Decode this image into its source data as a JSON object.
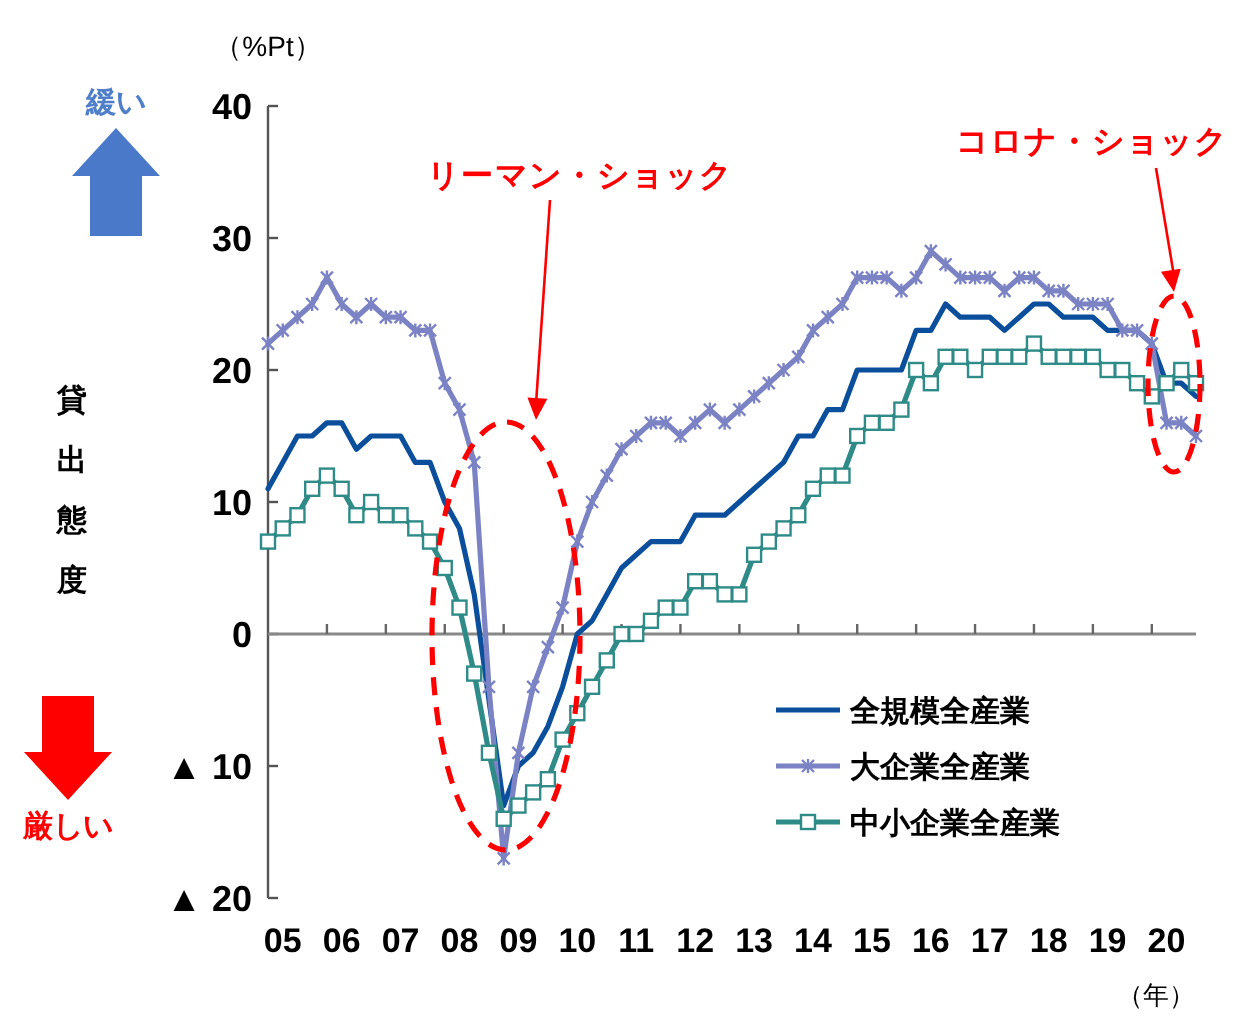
{
  "chart_data": {
    "type": "line",
    "ylabel": "貸出態度",
    "xlabel": "（年）",
    "categories": [
      null,
      "05",
      null,
      null,
      null,
      "06",
      null,
      null,
      null,
      "07",
      null,
      null,
      null,
      "08",
      null,
      null,
      null,
      "09",
      null,
      null,
      null,
      "10",
      null,
      null,
      null,
      "11",
      null,
      null,
      null,
      "12",
      null,
      null,
      null,
      "13",
      null,
      null,
      null,
      "14",
      null,
      null,
      null,
      "15",
      null,
      null,
      null,
      "16",
      null,
      null,
      null,
      "17",
      null,
      null,
      null,
      "18",
      null,
      null,
      null,
      "19",
      null,
      null,
      null,
      "20",
      null,
      null
    ],
    "series": [
      {
        "name": "全規模全産業",
        "color": "#0b4f9c",
        "marker": "none",
        "values": [
          11,
          13,
          15,
          15,
          16,
          16,
          14,
          15,
          15,
          15,
          13,
          13,
          10,
          8,
          3,
          -5,
          -13,
          -10,
          -9,
          -7,
          -4,
          0,
          1,
          3,
          5,
          6,
          7,
          7,
          7,
          9,
          9,
          9,
          10,
          11,
          12,
          13,
          15,
          15,
          17,
          17,
          20,
          20,
          20,
          20,
          23,
          23,
          25,
          24,
          24,
          24,
          23,
          24,
          25,
          25,
          24,
          24,
          24,
          23,
          23,
          23,
          22,
          19,
          19,
          18
        ]
      },
      {
        "name": "大企業全産業",
        "color": "#7b83c4",
        "marker": "cross",
        "values": [
          22,
          23,
          24,
          25,
          27,
          25,
          24,
          25,
          24,
          24,
          23,
          23,
          19,
          17,
          13,
          -4,
          -17,
          -9,
          -4,
          -1,
          2,
          7,
          10,
          12,
          14,
          15,
          16,
          16,
          15,
          16,
          17,
          16,
          17,
          18,
          19,
          20,
          21,
          23,
          24,
          25,
          27,
          27,
          27,
          26,
          27,
          29,
          28,
          27,
          27,
          27,
          26,
          27,
          27,
          26,
          26,
          25,
          25,
          25,
          23,
          23,
          22,
          16,
          16,
          15
        ]
      },
      {
        "name": "中小企業全産業",
        "color": "#2e8b87",
        "marker": "square",
        "values": [
          7,
          8,
          9,
          11,
          12,
          11,
          9,
          10,
          9,
          9,
          8,
          7,
          5,
          2,
          -3,
          -9,
          -14,
          -13,
          -12,
          -11,
          -8,
          -6,
          -4,
          -2,
          0,
          0,
          1,
          2,
          2,
          4,
          4,
          3,
          3,
          6,
          7,
          8,
          9,
          11,
          12,
          12,
          15,
          16,
          16,
          17,
          20,
          19,
          21,
          21,
          20,
          21,
          21,
          21,
          22,
          21,
          21,
          21,
          21,
          20,
          20,
          19,
          18,
          19,
          20,
          19
        ]
      }
    ],
    "ylim": [
      -20,
      40
    ],
    "yticks": [
      {
        "value": -20,
        "label": "▲ 20"
      },
      {
        "value": -10,
        "label": "▲ 10"
      },
      0,
      10,
      20,
      30,
      40
    ],
    "legend": "bottom right",
    "annotations": [
      "（%Pt）",
      "緩い",
      "厳しい",
      "リーマン・ショック",
      "コロナ・ショック"
    ]
  }
}
